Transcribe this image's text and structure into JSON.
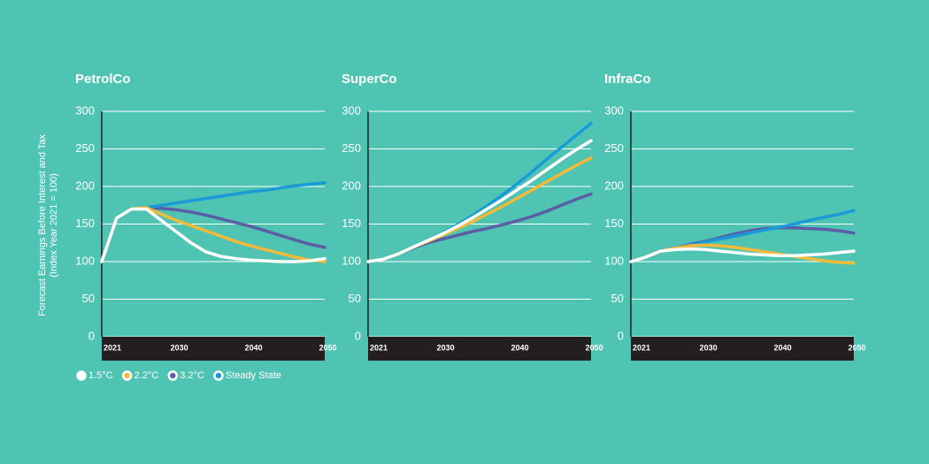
{
  "chart_data": [
    {
      "type": "line",
      "title": "PetrolCo",
      "ylabel": [
        "Forecast Earnings Before Interest and Tax",
        "(Index Year 2021 = 100)"
      ],
      "x": [
        2021,
        2023,
        2025,
        2027,
        2029,
        2031,
        2033,
        2035,
        2037,
        2039,
        2041,
        2043,
        2045,
        2047,
        2049,
        2051
      ],
      "xlim": [
        2021,
        2051
      ],
      "xticks": [
        2021,
        2030,
        2040,
        2050
      ],
      "ylim": [
        0,
        300
      ],
      "yticks": [
        0,
        50,
        100,
        150,
        200,
        250,
        300
      ],
      "grid": true,
      "series": [
        {
          "name": "3.2°C",
          "color": "#5b5ea6",
          "values": [
            100,
            158,
            170,
            172,
            171,
            169,
            166,
            162,
            157,
            152,
            147,
            141,
            135,
            129,
            123,
            119
          ]
        },
        {
          "name": "Steady State",
          "color": "#1a9ad6",
          "values": [
            100,
            158,
            170,
            172,
            175,
            178,
            181,
            184,
            187,
            190,
            193,
            195,
            198,
            201,
            203,
            205
          ]
        },
        {
          "name": "2.2°C",
          "color": "#f2b93b",
          "values": [
            100,
            158,
            170,
            172,
            163,
            155,
            148,
            141,
            134,
            127,
            121,
            116,
            111,
            106,
            102,
            100
          ]
        },
        {
          "name": "1.5°C",
          "color": "#ffffff",
          "values": [
            100,
            158,
            170,
            170,
            155,
            140,
            125,
            113,
            107,
            104,
            102,
            101,
            100,
            100,
            101,
            104
          ]
        }
      ]
    },
    {
      "type": "line",
      "title": "SuperCo",
      "x": [
        2021,
        2023,
        2025,
        2027,
        2029,
        2031,
        2033,
        2035,
        2037,
        2039,
        2041,
        2043,
        2045,
        2047,
        2049,
        2051
      ],
      "xlim": [
        2021,
        2051
      ],
      "xticks": [
        2021,
        2030,
        2040,
        2050
      ],
      "ylim": [
        0,
        300
      ],
      "yticks": [
        0,
        50,
        100,
        150,
        200,
        250,
        300
      ],
      "grid": true,
      "series": [
        {
          "name": "3.2°C",
          "color": "#5b5ea6",
          "values": [
            100,
            103,
            110,
            118,
            125,
            130,
            135,
            140,
            144,
            149,
            154,
            160,
            167,
            175,
            183,
            190
          ]
        },
        {
          "name": "Steady State",
          "color": "#1a9ad6",
          "values": [
            100,
            103,
            110,
            119,
            128,
            138,
            149,
            161,
            174,
            188,
            203,
            219,
            236,
            252,
            268,
            284
          ]
        },
        {
          "name": "2.2°C",
          "color": "#f2b93b",
          "values": [
            100,
            103,
            110,
            119,
            127,
            135,
            144,
            153,
            163,
            173,
            184,
            195,
            206,
            217,
            228,
            238
          ]
        },
        {
          "name": "1.5°C",
          "color": "#ffffff",
          "values": [
            100,
            103,
            110,
            119,
            128,
            137,
            147,
            158,
            170,
            182,
            195,
            208,
            222,
            236,
            249,
            261
          ]
        }
      ]
    },
    {
      "type": "line",
      "title": "InfraCo",
      "x": [
        2021,
        2023,
        2025,
        2027,
        2029,
        2031,
        2033,
        2035,
        2037,
        2039,
        2041,
        2043,
        2045,
        2047,
        2049,
        2051
      ],
      "xlim": [
        2021,
        2051
      ],
      "xticks": [
        2021,
        2030,
        2040,
        2050
      ],
      "ylim": [
        0,
        300
      ],
      "yticks": [
        0,
        50,
        100,
        150,
        200,
        250,
        300
      ],
      "grid": true,
      "series": [
        {
          "name": "3.2°C",
          "color": "#5b5ea6",
          "values": [
            100,
            106,
            114,
            118,
            123,
            127,
            132,
            137,
            141,
            144,
            145,
            145,
            144,
            143,
            141,
            138
          ]
        },
        {
          "name": "Steady State",
          "color": "#1a9ad6",
          "values": [
            100,
            106,
            114,
            118,
            122,
            126,
            130,
            134,
            138,
            142,
            146,
            150,
            155,
            159,
            163,
            168
          ]
        },
        {
          "name": "2.2°C",
          "color": "#f2b93b",
          "values": [
            100,
            106,
            114,
            118,
            121,
            122,
            121,
            119,
            116,
            113,
            110,
            107,
            104,
            101,
            99,
            98
          ]
        },
        {
          "name": "1.5°C",
          "color": "#ffffff",
          "values": [
            100,
            106,
            114,
            116,
            117,
            116,
            114,
            112,
            110,
            109,
            108,
            108,
            109,
            110,
            112,
            114
          ]
        }
      ]
    }
  ]
}
